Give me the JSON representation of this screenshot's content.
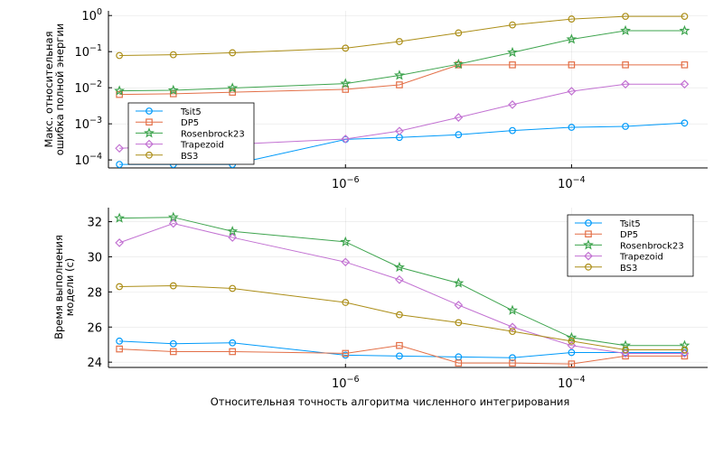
{
  "chart_data": [
    {
      "type": "line",
      "title": "",
      "ylabel": [
        "Макс. относительная",
        "ошибка полной энергии"
      ],
      "xlabel": "",
      "xscale": "log",
      "yscale": "log",
      "xlim": [
        8e-09,
        0.0016
      ],
      "ylim": [
        6e-05,
        1.35
      ],
      "x_ticks": [
        {
          "value": 1e-06,
          "base": "10",
          "exp": "−6"
        },
        {
          "value": 0.0001,
          "base": "10",
          "exp": "−4"
        }
      ],
      "y_ticks": [
        {
          "value": 0.0001,
          "base": "10",
          "exp": "−4"
        },
        {
          "value": 0.001,
          "base": "10",
          "exp": "−3"
        },
        {
          "value": 0.01,
          "base": "10",
          "exp": "−2"
        },
        {
          "value": 0.1,
          "base": "10",
          "exp": "−1"
        },
        {
          "value": 1,
          "base": "10",
          "exp": "0"
        }
      ],
      "legend_position": "bottom-left",
      "x": [
        1e-08,
        3e-08,
        1e-07,
        1e-06,
        3e-06,
        1e-05,
        3e-05,
        0.0001,
        0.0003,
        0.001
      ],
      "series": [
        {
          "name": "Tsit5",
          "color": "#009AFA",
          "marker": "circle",
          "values": [
            7.5e-05,
            7.5e-05,
            7.5e-05,
            0.00037,
            0.00042,
            0.0005,
            0.00065,
            0.0008,
            0.00085,
            0.00105
          ]
        },
        {
          "name": "DP5",
          "color": "#E36F47",
          "marker": "square",
          "values": [
            0.0065,
            0.0068,
            0.0075,
            0.009,
            0.012,
            0.043,
            0.043,
            0.043,
            0.043,
            0.043
          ]
        },
        {
          "name": "Rosenbrock23",
          "color": "#3EA44E",
          "marker": "star",
          "values": [
            0.0082,
            0.0085,
            0.0098,
            0.013,
            0.022,
            0.045,
            0.095,
            0.22,
            0.38,
            0.38
          ]
        },
        {
          "name": "Trapezoid",
          "color": "#C271D2",
          "marker": "diamond",
          "values": [
            0.00021,
            0.00024,
            0.00027,
            0.00038,
            0.00063,
            0.0015,
            0.0034,
            0.008,
            0.0125,
            0.0125
          ]
        },
        {
          "name": "BS3",
          "color": "#AC8E18",
          "marker": "circle",
          "values": [
            0.078,
            0.082,
            0.093,
            0.125,
            0.19,
            0.33,
            0.55,
            0.8,
            0.95,
            0.95
          ]
        }
      ]
    },
    {
      "type": "line",
      "title": "",
      "ylabel": [
        "Время выполнения",
        "модели (с)"
      ],
      "xlabel": "Относительная точность алгоритма численного интегрирования",
      "xscale": "log",
      "yscale": "linear",
      "xlim": [
        8e-09,
        0.0016
      ],
      "ylim": [
        23.7,
        32.8
      ],
      "x_ticks": [
        {
          "value": 1e-06,
          "base": "10",
          "exp": "−6"
        },
        {
          "value": 0.0001,
          "base": "10",
          "exp": "−4"
        }
      ],
      "y_ticks": [
        {
          "value": 24,
          "label": "24"
        },
        {
          "value": 26,
          "label": "26"
        },
        {
          "value": 28,
          "label": "28"
        },
        {
          "value": 30,
          "label": "30"
        },
        {
          "value": 32,
          "label": "32"
        }
      ],
      "legend_position": "top-right",
      "x": [
        1e-08,
        3e-08,
        1e-07,
        1e-06,
        3e-06,
        1e-05,
        3e-05,
        0.0001,
        0.0003,
        0.001
      ],
      "series": [
        {
          "name": "Tsit5",
          "color": "#009AFA",
          "marker": "circle",
          "values": [
            25.2,
            25.05,
            25.1,
            24.4,
            24.35,
            24.3,
            24.25,
            24.55,
            24.55,
            24.55
          ]
        },
        {
          "name": "DP5",
          "color": "#E36F47",
          "marker": "square",
          "values": [
            24.75,
            24.6,
            24.6,
            24.5,
            24.95,
            23.95,
            23.95,
            23.9,
            24.35,
            24.35
          ]
        },
        {
          "name": "Rosenbrock23",
          "color": "#3EA44E",
          "marker": "star",
          "values": [
            32.2,
            32.25,
            31.45,
            30.85,
            29.4,
            28.5,
            26.95,
            25.4,
            24.95,
            24.95
          ]
        },
        {
          "name": "Trapezoid",
          "color": "#C271D2",
          "marker": "diamond",
          "values": [
            30.8,
            31.9,
            31.1,
            29.7,
            28.7,
            27.25,
            26.0,
            24.95,
            24.5,
            24.5
          ]
        },
        {
          "name": "BS3",
          "color": "#AC8E18",
          "marker": "circle",
          "values": [
            28.3,
            28.35,
            28.2,
            27.4,
            26.7,
            26.25,
            25.75,
            25.2,
            24.7,
            24.7
          ]
        }
      ]
    }
  ]
}
